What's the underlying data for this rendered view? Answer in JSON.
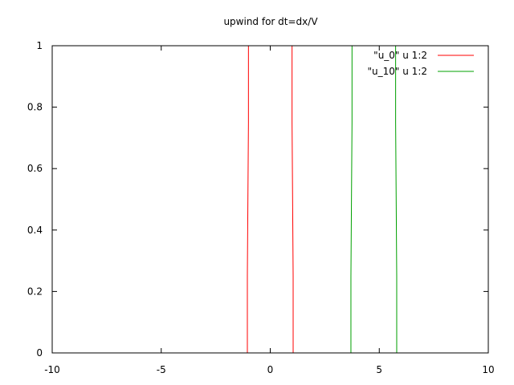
{
  "chart_data": {
    "type": "line",
    "title": "upwind for dt=dx/V",
    "xlabel": "",
    "ylabel": "",
    "xlim": [
      -10,
      10
    ],
    "ylim": [
      0,
      1
    ],
    "x_ticks": [
      -10,
      -5,
      0,
      5,
      10
    ],
    "y_ticks": [
      0,
      0.2,
      0.4,
      0.6,
      0.8,
      1
    ],
    "x_tick_labels": [
      "-10",
      "-5",
      "0",
      "5",
      "10"
    ],
    "y_tick_labels": [
      "0",
      "0.2",
      "0.4",
      "0.6",
      "0.8",
      "1"
    ],
    "grid": false,
    "legend": {
      "placement": "top-right"
    },
    "series": [
      {
        "name": "\"u_0\" u 1:2",
        "color": "#ff0000",
        "x": [
          -10,
          -1.05,
          -1.05,
          -1.0,
          -1.0,
          1.0,
          1.0,
          1.05,
          1.05,
          10
        ],
        "y": [
          0,
          0,
          0.25,
          0.75,
          1,
          1,
          0.75,
          0.25,
          0,
          0
        ]
      },
      {
        "name": "\"u_10\" u 1:2",
        "color": "#00a000",
        "x": [
          -10,
          3.7,
          3.7,
          3.75,
          3.75,
          5.75,
          5.75,
          5.8,
          5.8,
          10
        ],
        "y": [
          0,
          0,
          0.25,
          0.75,
          1,
          1,
          0.75,
          0.25,
          0,
          0
        ]
      }
    ]
  }
}
